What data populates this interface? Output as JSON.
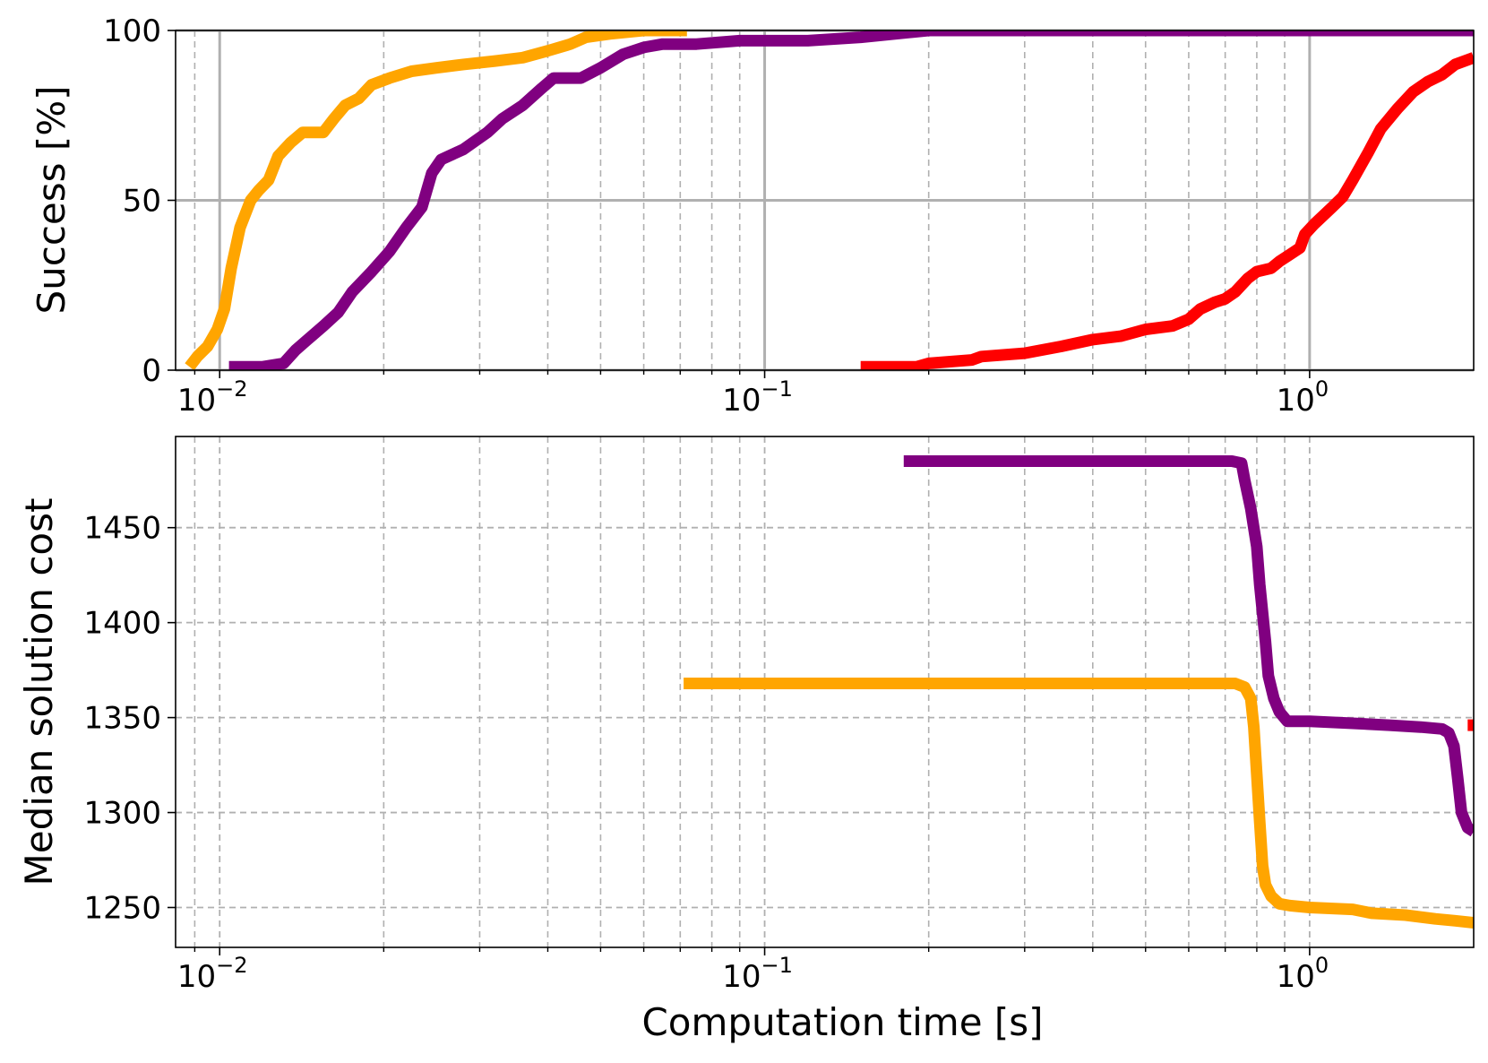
{
  "chart_data": [
    {
      "type": "line",
      "xscale": "log",
      "xlim": [
        0.0083,
        2.0
      ],
      "ylim": [
        0,
        100
      ],
      "xlabel": "",
      "ylabel": "Success [%]",
      "x_ticks": [
        {
          "value": 0.01,
          "base": "10",
          "exp": "−2"
        },
        {
          "value": 0.1,
          "base": "10",
          "exp": "−1"
        },
        {
          "value": 1,
          "base": "10",
          "exp": "0"
        }
      ],
      "y_ticks": [
        {
          "value": 0,
          "label": "0"
        },
        {
          "value": 50,
          "label": "50"
        },
        {
          "value": 100,
          "label": "100"
        }
      ],
      "grid": {
        "major": "solid",
        "minor": "dashed"
      },
      "series": [
        {
          "color": "#ffa500",
          "points": [
            [
              0.0088,
              1
            ],
            [
              0.0091,
              4
            ],
            [
              0.0095,
              7
            ],
            [
              0.0099,
              12
            ],
            [
              0.0102,
              18
            ],
            [
              0.0105,
              30
            ],
            [
              0.0109,
              42
            ],
            [
              0.0114,
              50
            ],
            [
              0.0118,
              53
            ],
            [
              0.0123,
              56
            ],
            [
              0.0128,
              63
            ],
            [
              0.0135,
              67
            ],
            [
              0.0142,
              70
            ],
            [
              0.0155,
              70
            ],
            [
              0.0162,
              74
            ],
            [
              0.017,
              78
            ],
            [
              0.018,
              80
            ],
            [
              0.019,
              84
            ],
            [
              0.0205,
              86
            ],
            [
              0.0225,
              88
            ],
            [
              0.025,
              89
            ],
            [
              0.028,
              90
            ],
            [
              0.032,
              91
            ],
            [
              0.036,
              92
            ],
            [
              0.04,
              94
            ],
            [
              0.044,
              96
            ],
            [
              0.047,
              98
            ],
            [
              0.052,
              99
            ],
            [
              0.06,
              100
            ],
            [
              0.072,
              100
            ]
          ]
        },
        {
          "color": "#800080",
          "points": [
            [
              0.0104,
              1
            ],
            [
              0.012,
              1
            ],
            [
              0.0131,
              2
            ],
            [
              0.0138,
              6
            ],
            [
              0.0145,
              9
            ],
            [
              0.0155,
              13
            ],
            [
              0.0165,
              17
            ],
            [
              0.0175,
              23
            ],
            [
              0.019,
              29
            ],
            [
              0.0205,
              35
            ],
            [
              0.022,
              42
            ],
            [
              0.0235,
              48
            ],
            [
              0.024,
              53
            ],
            [
              0.0245,
              58
            ],
            [
              0.0255,
              62
            ],
            [
              0.028,
              65
            ],
            [
              0.031,
              70
            ],
            [
              0.033,
              74
            ],
            [
              0.036,
              78
            ],
            [
              0.039,
              83
            ],
            [
              0.041,
              86
            ],
            [
              0.046,
              86
            ],
            [
              0.05,
              89
            ],
            [
              0.055,
              93
            ],
            [
              0.06,
              95
            ],
            [
              0.065,
              96
            ],
            [
              0.075,
              96
            ],
            [
              0.09,
              97
            ],
            [
              0.12,
              97
            ],
            [
              0.15,
              98
            ],
            [
              0.2,
              100
            ],
            [
              2.0,
              100
            ]
          ]
        },
        {
          "color": "#ff0000",
          "points": [
            [
              0.15,
              1
            ],
            [
              0.19,
              1
            ],
            [
              0.2,
              2
            ],
            [
              0.24,
              3
            ],
            [
              0.25,
              4
            ],
            [
              0.3,
              5
            ],
            [
              0.35,
              7
            ],
            [
              0.4,
              9
            ],
            [
              0.45,
              10
            ],
            [
              0.5,
              12
            ],
            [
              0.56,
              13
            ],
            [
              0.6,
              15
            ],
            [
              0.63,
              18
            ],
            [
              0.67,
              20
            ],
            [
              0.7,
              21
            ],
            [
              0.73,
              23
            ],
            [
              0.77,
              27
            ],
            [
              0.8,
              29
            ],
            [
              0.85,
              30
            ],
            [
              0.88,
              32
            ],
            [
              0.92,
              34
            ],
            [
              0.96,
              36
            ],
            [
              0.98,
              40
            ],
            [
              1.02,
              43
            ],
            [
              1.1,
              48
            ],
            [
              1.15,
              51
            ],
            [
              1.2,
              56
            ],
            [
              1.28,
              64
            ],
            [
              1.35,
              71
            ],
            [
              1.45,
              77
            ],
            [
              1.55,
              82
            ],
            [
              1.65,
              85
            ],
            [
              1.75,
              87
            ],
            [
              1.85,
              90
            ],
            [
              2.0,
              92
            ]
          ]
        }
      ]
    },
    {
      "type": "line",
      "xscale": "log",
      "xlim": [
        0.0083,
        2.0
      ],
      "ylim": [
        1229,
        1498
      ],
      "xlabel": "Computation time [s]",
      "ylabel": "Median solution cost",
      "x_ticks": [
        {
          "value": 0.01,
          "base": "10",
          "exp": "−2"
        },
        {
          "value": 0.1,
          "base": "10",
          "exp": "−1"
        },
        {
          "value": 1,
          "base": "10",
          "exp": "0"
        }
      ],
      "y_ticks": [
        {
          "value": 1250,
          "label": "1250"
        },
        {
          "value": 1300,
          "label": "1300"
        },
        {
          "value": 1350,
          "label": "1350"
        },
        {
          "value": 1400,
          "label": "1400"
        },
        {
          "value": 1450,
          "label": "1450"
        }
      ],
      "grid": {
        "major": "dashed",
        "minor": "dashed"
      },
      "series": [
        {
          "color": "#800080",
          "points": [
            [
              0.18,
              1485
            ],
            [
              0.72,
              1485
            ],
            [
              0.75,
              1484
            ],
            [
              0.76,
              1475
            ],
            [
              0.78,
              1460
            ],
            [
              0.8,
              1440
            ],
            [
              0.81,
              1420
            ],
            [
              0.82,
              1405
            ],
            [
              0.83,
              1390
            ],
            [
              0.84,
              1372
            ],
            [
              0.86,
              1360
            ],
            [
              0.88,
              1353
            ],
            [
              0.91,
              1348
            ],
            [
              1.0,
              1348
            ],
            [
              1.2,
              1347
            ],
            [
              1.4,
              1346
            ],
            [
              1.6,
              1345
            ],
            [
              1.75,
              1344
            ],
            [
              1.8,
              1342
            ],
            [
              1.84,
              1335
            ],
            [
              1.87,
              1318
            ],
            [
              1.9,
              1300
            ],
            [
              1.95,
              1292
            ],
            [
              2.0,
              1290
            ]
          ]
        },
        {
          "color": "#ffa500",
          "points": [
            [
              0.071,
              1368
            ],
            [
              0.73,
              1368
            ],
            [
              0.76,
              1366
            ],
            [
              0.78,
              1360
            ],
            [
              0.79,
              1345
            ],
            [
              0.8,
              1320
            ],
            [
              0.81,
              1295
            ],
            [
              0.82,
              1272
            ],
            [
              0.83,
              1262
            ],
            [
              0.85,
              1256
            ],
            [
              0.88,
              1252
            ],
            [
              0.92,
              1251
            ],
            [
              1.0,
              1250
            ],
            [
              1.2,
              1249
            ],
            [
              1.3,
              1247
            ],
            [
              1.5,
              1246
            ],
            [
              1.7,
              1244
            ],
            [
              1.85,
              1243
            ],
            [
              2.0,
              1242
            ]
          ]
        },
        {
          "color": "#ff0000",
          "points": [
            [
              1.95,
              1346
            ],
            [
              2.0,
              1346
            ]
          ]
        }
      ]
    }
  ]
}
